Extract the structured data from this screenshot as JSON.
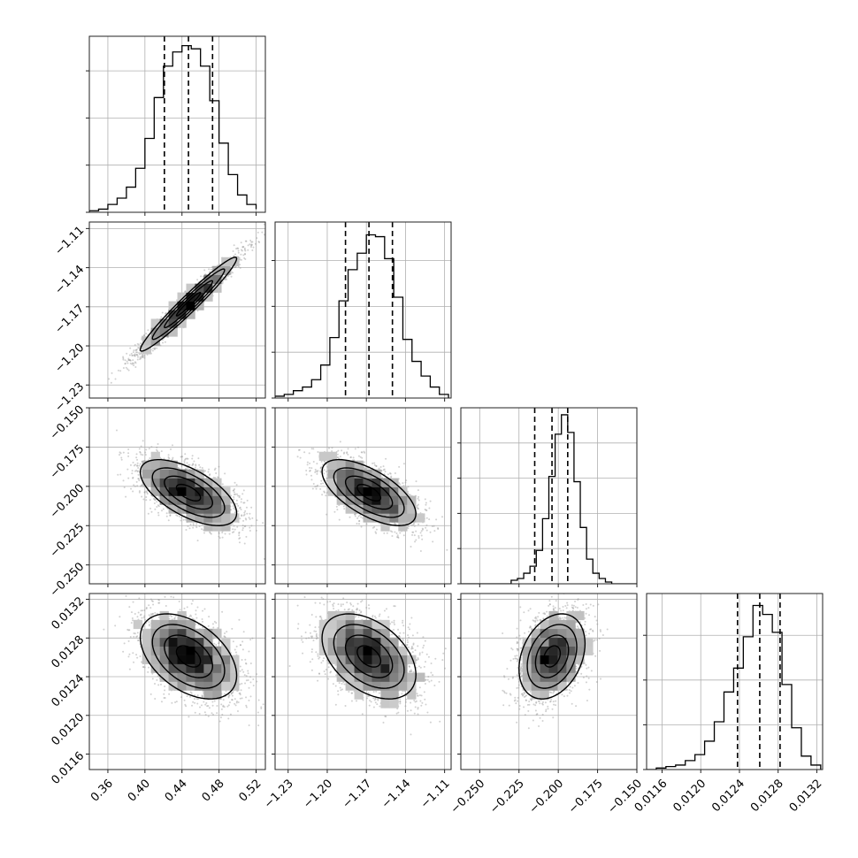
{
  "colors": {
    "frame": "#222222",
    "grid": "#b0b0b0",
    "line": "#000000",
    "scatter": "#9a9a9a",
    "density_light": "#e8e8e8",
    "density_dark": "#000000"
  },
  "chart_data": {
    "type": "corner",
    "grid": true,
    "parameters": [
      {
        "range": [
          0.34,
          0.53
        ],
        "ticks": [
          0.36,
          0.4,
          0.44,
          0.48,
          0.52
        ],
        "tick_labels": [
          "0.36",
          "0.40",
          "0.44",
          "0.48",
          "0.52"
        ],
        "median": 0.447,
        "quantiles": [
          0.421,
          0.447,
          0.473
        ],
        "histogram": {
          "edges": [
            0.34,
            0.35,
            0.36,
            0.37,
            0.38,
            0.39,
            0.4,
            0.41,
            0.42,
            0.43,
            0.44,
            0.45,
            0.46,
            0.47,
            0.48,
            0.49,
            0.5,
            0.51,
            0.52
          ],
          "counts": [
            1,
            2,
            5,
            9,
            16,
            28,
            47,
            73,
            93,
            102,
            106,
            104,
            93,
            71,
            44,
            24,
            11,
            5,
            2
          ],
          "ymax": 112,
          "yticks": [
            0,
            30,
            60,
            90
          ]
        }
      },
      {
        "range": [
          -1.24,
          -1.105
        ],
        "ticks": [
          -1.23,
          -1.2,
          -1.17,
          -1.14,
          -1.11
        ],
        "tick_labels": [
          "−1.23",
          "−1.20",
          "−1.17",
          "−1.14",
          "−1.11"
        ],
        "median": -1.168,
        "quantiles": [
          -1.186,
          -1.168,
          -1.15
        ],
        "histogram": {
          "edges": [
            -1.24,
            -1.233,
            -1.226,
            -1.219,
            -1.212,
            -1.205,
            -1.198,
            -1.191,
            -1.184,
            -1.177,
            -1.17,
            -1.163,
            -1.156,
            -1.149,
            -1.142,
            -1.135,
            -1.128,
            -1.121,
            -1.114,
            -1.107
          ],
          "counts": [
            1,
            2,
            4,
            6,
            10,
            18,
            33,
            53,
            70,
            79,
            89,
            88,
            76,
            55,
            32,
            20,
            12,
            6,
            2
          ],
          "ymax": 96,
          "yticks": [
            0,
            25,
            50,
            75
          ]
        }
      },
      {
        "range": [
          -0.262,
          -0.15
        ],
        "ticks": [
          -0.25,
          -0.225,
          -0.2,
          -0.175,
          -0.15
        ],
        "tick_labels": [
          "−0.250",
          "−0.225",
          "−0.200",
          "−0.175",
          "−0.150"
        ],
        "median": -0.204,
        "quantiles": [
          -0.215,
          -0.204,
          -0.194
        ],
        "histogram": {
          "edges": [
            -0.262,
            -0.258,
            -0.254,
            -0.25,
            -0.246,
            -0.242,
            -0.238,
            -0.234,
            -0.23,
            -0.226,
            -0.222,
            -0.218,
            -0.214,
            -0.21,
            -0.206,
            -0.202,
            -0.198,
            -0.194,
            -0.19,
            -0.186,
            -0.182,
            -0.178,
            -0.174,
            -0.17,
            -0.166,
            -0.162,
            -0.158,
            -0.154,
            -0.15
          ],
          "counts": [
            0,
            0,
            0,
            0,
            0,
            0,
            0,
            0,
            2,
            3,
            6,
            10,
            19,
            37,
            61,
            85,
            96,
            86,
            58,
            32,
            14,
            6,
            3,
            1,
            0,
            0,
            0,
            0
          ],
          "ymax": 100,
          "yticks": [
            0,
            20,
            40,
            60,
            80
          ]
        }
      },
      {
        "range": [
          0.01144,
          0.01326
        ],
        "ticks": [
          0.0116,
          0.012,
          0.0124,
          0.0128,
          0.0132
        ],
        "tick_labels": [
          "0.0116",
          "0.0120",
          "0.0124",
          "0.0128",
          "0.0132"
        ],
        "median": 0.01261,
        "quantiles": [
          0.01238,
          0.01261,
          0.01282
        ],
        "histogram": {
          "edges": [
            0.01144,
            0.01154,
            0.01164,
            0.01174,
            0.01184,
            0.01194,
            0.01204,
            0.01214,
            0.01224,
            0.01234,
            0.01244,
            0.01254,
            0.01264,
            0.01274,
            0.01284,
            0.01294,
            0.01304,
            0.01314,
            0.01324
          ],
          "counts": [
            0,
            1,
            2,
            3,
            6,
            10,
            19,
            32,
            52,
            68,
            89,
            110,
            104,
            92,
            57,
            28,
            9,
            3
          ],
          "ymax": 118,
          "yticks": [
            0,
            30,
            60,
            90
          ]
        }
      }
    ],
    "pairs": [
      {
        "row": 1,
        "col": 0,
        "correlation": 0.97
      },
      {
        "row": 2,
        "col": 0,
        "correlation": -0.62
      },
      {
        "row": 2,
        "col": 1,
        "correlation": -0.64
      },
      {
        "row": 3,
        "col": 0,
        "correlation": -0.45
      },
      {
        "row": 3,
        "col": 1,
        "correlation": -0.43
      },
      {
        "row": 3,
        "col": 2,
        "correlation": 0.3
      }
    ],
    "contour_levels_sigma": [
      0.5,
      1.0,
      1.5,
      2.0
    ]
  }
}
